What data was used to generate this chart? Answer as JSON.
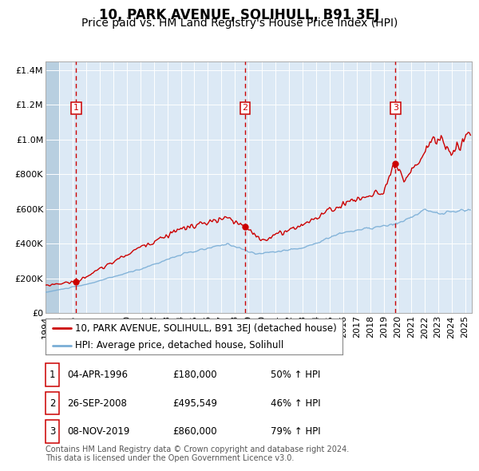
{
  "title": "10, PARK AVENUE, SOLIHULL, B91 3EJ",
  "subtitle": "Price paid vs. HM Land Registry's House Price Index (HPI)",
  "legend_red": "10, PARK AVENUE, SOLIHULL, B91 3EJ (detached house)",
  "legend_blue": "HPI: Average price, detached house, Solihull",
  "transactions": [
    {
      "num": 1,
      "date": "04-APR-1996",
      "price": 180000,
      "pct": "50%",
      "direction": "↑",
      "year": 1996.27
    },
    {
      "num": 2,
      "date": "26-SEP-2008",
      "price": 495549,
      "pct": "46%",
      "direction": "↑",
      "year": 2008.75
    },
    {
      "num": 3,
      "date": "08-NOV-2019",
      "price": 860000,
      "pct": "79%",
      "direction": "↑",
      "year": 2019.86
    }
  ],
  "footnote1": "Contains HM Land Registry data © Crown copyright and database right 2024.",
  "footnote2": "This data is licensed under the Open Government Licence v3.0.",
  "ylim": [
    0,
    1450000
  ],
  "yticks": [
    0,
    200000,
    400000,
    600000,
    800000,
    1000000,
    1200000,
    1400000
  ],
  "xlim_start": 1994.0,
  "xlim_end": 2025.5,
  "bg_color": "#dce9f5",
  "hatch_color": "#b8cfe0",
  "grid_color": "#ffffff",
  "red_line_color": "#cc0000",
  "blue_line_color": "#7aaed6",
  "dashed_line_color": "#cc0000",
  "title_fontsize": 12,
  "subtitle_fontsize": 10,
  "tick_fontsize": 8
}
